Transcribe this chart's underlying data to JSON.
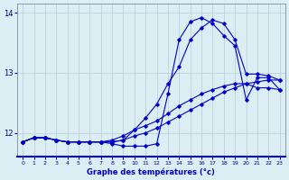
{
  "xlabel": "Graphe des températures (°c)",
  "background_color": "#daeef3",
  "grid_color": "#b8d4dc",
  "line_color": "#0000cd",
  "xlim": [
    -0.5,
    23.5
  ],
  "ylim": [
    11.6,
    14.15
  ],
  "yticks": [
    12,
    13,
    14
  ],
  "xticks": [
    0,
    1,
    2,
    3,
    4,
    5,
    6,
    7,
    8,
    9,
    10,
    11,
    12,
    13,
    14,
    15,
    16,
    17,
    18,
    19,
    20,
    21,
    22,
    23
  ],
  "series": [
    {
      "x": [
        0,
        1,
        2,
        3,
        4,
        5,
        6,
        7,
        8,
        9,
        10,
        11,
        12,
        13,
        14,
        15,
        16,
        17,
        18,
        19,
        20,
        21,
        22,
        23
      ],
      "y": [
        11.85,
        11.92,
        11.92,
        11.88,
        11.85,
        11.85,
        11.85,
        11.85,
        11.88,
        11.95,
        12.05,
        12.12,
        12.2,
        12.32,
        12.45,
        12.55,
        12.65,
        12.72,
        12.78,
        12.82,
        12.82,
        12.75,
        12.75,
        12.72
      ]
    },
    {
      "x": [
        0,
        1,
        2,
        3,
        4,
        5,
        6,
        7,
        8,
        9,
        10,
        11,
        12,
        13,
        14,
        15,
        16,
        17,
        18,
        19,
        20,
        21,
        22,
        23
      ],
      "y": [
        11.85,
        11.92,
        11.92,
        11.88,
        11.85,
        11.85,
        11.85,
        11.85,
        11.85,
        11.88,
        11.95,
        12.0,
        12.08,
        12.18,
        12.28,
        12.38,
        12.48,
        12.58,
        12.68,
        12.75,
        12.82,
        12.85,
        12.88,
        12.88
      ]
    },
    {
      "x": [
        0,
        1,
        2,
        3,
        4,
        5,
        6,
        7,
        8,
        9,
        10,
        11,
        12,
        13,
        14,
        15,
        16,
        17,
        18,
        19,
        20,
        21,
        22,
        23
      ],
      "y": [
        11.85,
        11.92,
        11.92,
        11.88,
        11.85,
        11.85,
        11.85,
        11.85,
        11.85,
        11.88,
        12.05,
        12.25,
        12.48,
        12.82,
        13.1,
        13.55,
        13.75,
        13.88,
        13.82,
        13.55,
        12.98,
        12.98,
        12.95,
        12.88
      ]
    },
    {
      "x": [
        0,
        1,
        2,
        3,
        4,
        5,
        6,
        7,
        8,
        9,
        10,
        11,
        12,
        13,
        14,
        15,
        16,
        17,
        18,
        19,
        20,
        21,
        22,
        23
      ],
      "y": [
        11.85,
        11.92,
        11.92,
        11.88,
        11.85,
        11.85,
        11.85,
        11.85,
        11.82,
        11.78,
        11.78,
        11.78,
        11.82,
        12.65,
        13.55,
        13.85,
        13.92,
        13.82,
        13.62,
        13.45,
        12.55,
        12.92,
        12.92,
        12.72
      ]
    }
  ]
}
